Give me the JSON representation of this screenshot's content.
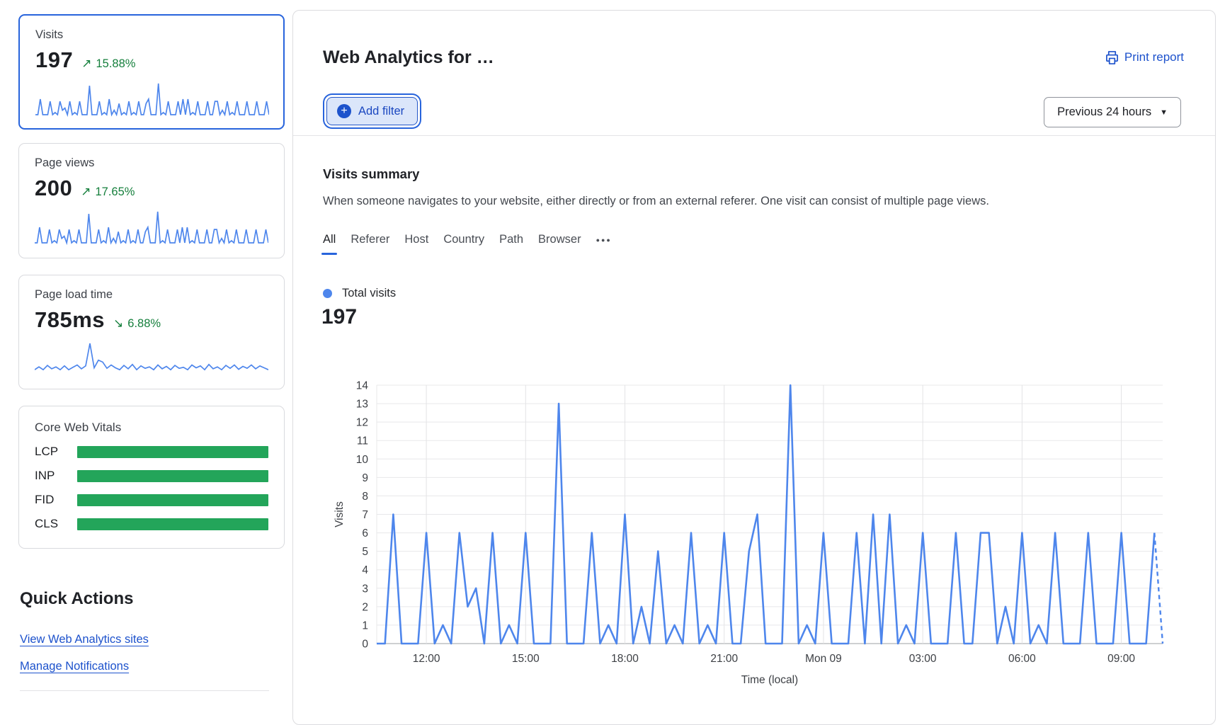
{
  "sidebar": {
    "cards": [
      {
        "label": "Visits",
        "value": "197",
        "trend_arrow": "↗",
        "trend": "15.88%",
        "selected": true
      },
      {
        "label": "Page views",
        "value": "200",
        "trend_arrow": "↗",
        "trend": "17.65%",
        "selected": false
      },
      {
        "label": "Page load time",
        "value": "785ms",
        "trend_arrow": "↘",
        "trend": "6.88%",
        "selected": false
      }
    ],
    "core_web_vitals": {
      "title": "Core Web Vitals",
      "bar_color": "#23a55a",
      "rows": [
        {
          "label": "LCP",
          "value_pct": 100
        },
        {
          "label": "INP",
          "value_pct": 100
        },
        {
          "label": "FID",
          "value_pct": 100
        },
        {
          "label": "CLS",
          "value_pct": 100
        }
      ]
    },
    "quick_actions": {
      "title": "Quick Actions",
      "links": [
        "View Web Analytics sites",
        "Manage Notifications"
      ]
    }
  },
  "header": {
    "title": "Web Analytics for …",
    "print_report": "Print report",
    "add_filter": "Add filter",
    "time_range": "Previous 24 hours"
  },
  "summary": {
    "title": "Visits summary",
    "description": "When someone navigates to your website, either directly or from an external referer. One visit can consist of multiple page views.",
    "tabs": [
      {
        "label": "All",
        "active": true
      },
      {
        "label": "Referer",
        "active": false
      },
      {
        "label": "Host",
        "active": false
      },
      {
        "label": "Country",
        "active": false
      },
      {
        "label": "Path",
        "active": false
      },
      {
        "label": "Browser",
        "active": false
      }
    ],
    "more_tab": "●●●",
    "legend_label": "Total visits",
    "total": "197"
  },
  "chart_data": {
    "type": "line",
    "series_name": "Total visits",
    "xlabel": "Time (local)",
    "ylabel": "Visits",
    "ylim": [
      0,
      14
    ],
    "y_tick_step": 1,
    "x_start": "Sun 10:30",
    "interval_minutes": 15,
    "x_ticks": [
      {
        "label": "12:00",
        "index": 6
      },
      {
        "label": "15:00",
        "index": 18
      },
      {
        "label": "18:00",
        "index": 30
      },
      {
        "label": "21:00",
        "index": 42
      },
      {
        "label": "Mon 09",
        "index": 54
      },
      {
        "label": "03:00",
        "index": 66
      },
      {
        "label": "06:00",
        "index": 78
      },
      {
        "label": "09:00",
        "index": 90
      }
    ],
    "values": [
      0,
      0,
      7,
      0,
      0,
      0,
      6,
      0,
      1,
      0,
      6,
      2,
      3,
      0,
      6,
      0,
      1,
      0,
      6,
      0,
      0,
      0,
      13,
      0,
      0,
      0,
      6,
      0,
      1,
      0,
      7,
      0,
      2,
      0,
      5,
      0,
      1,
      0,
      6,
      0,
      1,
      0,
      6,
      0,
      0,
      5,
      7,
      0,
      0,
      0,
      14,
      0,
      1,
      0,
      6,
      0,
      0,
      0,
      6,
      0,
      7,
      0,
      7,
      0,
      1,
      0,
      6,
      0,
      0,
      0,
      6,
      0,
      0,
      6,
      6,
      0,
      2,
      0,
      6,
      0,
      1,
      0,
      6,
      0,
      0,
      0,
      6,
      0,
      0,
      0,
      6,
      0,
      0,
      0,
      6,
      0
    ],
    "last_segment_dashed": true,
    "line_color": "#4e86ec",
    "grid": true
  },
  "sparklines": {
    "page_load_time": [
      1,
      1.6,
      1,
      1.9,
      1.2,
      1.6,
      1,
      1.8,
      1,
      1.5,
      2,
      1.2,
      1.8,
      6.5,
      1.4,
      3,
      2.6,
      1.3,
      2,
      1.4,
      1,
      1.9,
      1.2,
      2.1,
      1,
      1.8,
      1.3,
      1.6,
      1,
      2,
      1.2,
      1.7,
      1,
      1.9,
      1.3,
      1.5,
      1,
      2,
      1.4,
      1.8,
      1,
      2.1,
      1.2,
      1.6,
      1,
      1.9,
      1.3,
      2,
      1.1,
      1.7,
      1.3,
      2,
      1.2,
      1.8,
      1.4,
      1
    ]
  },
  "colors": {
    "accent_blue": "#2864dc",
    "link_blue": "#1d52cc",
    "chart_line_blue": "#4e86ec",
    "green_bar": "#23a55a",
    "green_text": "#157f3c"
  }
}
